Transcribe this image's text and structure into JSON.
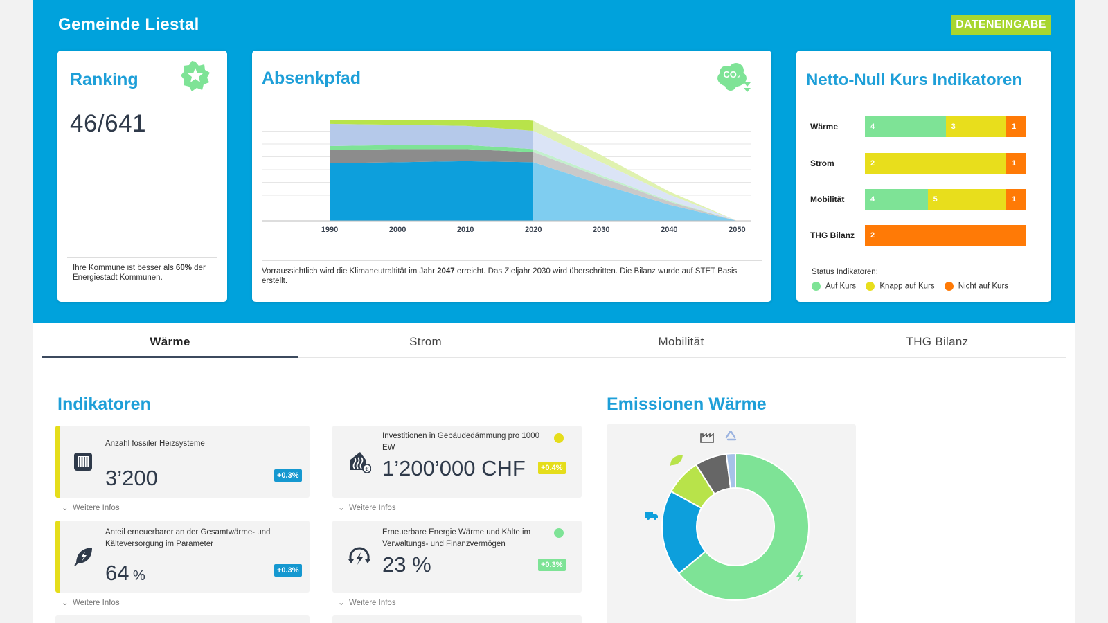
{
  "header": {
    "municipality": "Gemeinde Liestal",
    "data_entry_button": "DATENEINGABE"
  },
  "ranking": {
    "title": "Ranking",
    "value": "46/641",
    "footer_pre": "Ihre Kommune ist besser als ",
    "footer_bold": "60%",
    "footer_post": " der Energiestadt Kommunen."
  },
  "absenkpfad": {
    "title": "Absenkpfad",
    "footer_pre": "Vorraussichtlich wird die Klimaneutraltität im Jahr ",
    "footer_bold": "2047",
    "footer_post": " erreicht. Das Zieljahr 2030 wird überschritten. Die Bilanz wurde auf STET Basis erstellt.",
    "x_ticks": [
      "1990",
      "2000",
      "2010",
      "2020",
      "2030",
      "2040",
      "2050"
    ]
  },
  "netto_null": {
    "title": "Netto-Null Kurs Indikatoren",
    "rows": [
      {
        "label": "Wärme",
        "green": "4",
        "yellow": "3",
        "orange": "1"
      },
      {
        "label": "Strom",
        "yellow": "2",
        "orange": "1"
      },
      {
        "label": "Mobilität",
        "green": "4",
        "yellow": "5",
        "orange": "1"
      },
      {
        "label": "THG Bilanz",
        "orange": "2"
      }
    ],
    "status_label": "Status Indikatoren:",
    "legend": [
      "Auf Kurs",
      "Knapp auf Kurs",
      "Nicht auf Kurs"
    ],
    "colors": {
      "green": "#7ee396",
      "yellow": "#e8de1c",
      "orange": "#ff7a06"
    }
  },
  "tabs": [
    "Wärme",
    "Strom",
    "Mobilität",
    "THG Bilanz"
  ],
  "indikatoren": {
    "title": "Indikatoren",
    "more": "Weitere Infos",
    "items": [
      {
        "label": "Anzahl fossiler Heizsysteme",
        "value": "3’200",
        "unit": "",
        "badge": "+0.3%"
      },
      {
        "label": "Investitionen in Gebäudedämmung pro 1000 EW",
        "value": "1’200’000 CHF",
        "unit": "",
        "badge": "+0.4%"
      },
      {
        "label": "Anteil erneuerbarer an der Gesamtwärme- und Kälteversorgung im Parameter",
        "value": "64",
        "unit": " %",
        "badge": "+0.3%"
      },
      {
        "label": "Erneuerbare Energie Wärme und Kälte im Verwaltungs- und Finanzvermögen",
        "value": "23 %",
        "unit": "",
        "badge": "+0.3%"
      }
    ]
  },
  "emissionen": {
    "title": "Emissionen Wärme"
  },
  "chart_data": [
    {
      "type": "area",
      "title": "Absenkpfad",
      "x": [
        1990,
        2000,
        2010,
        2020,
        2030,
        2040,
        2050
      ],
      "ylim": [
        0,
        100
      ],
      "series": [
        {
          "name": "blue",
          "values": [
            57,
            58,
            59,
            58,
            36,
            16,
            0
          ]
        },
        {
          "name": "gray",
          "values": [
            13,
            13,
            12,
            10,
            7,
            3,
            0
          ]
        },
        {
          "name": "green",
          "values": [
            4,
            4,
            4,
            3,
            2,
            1,
            0
          ]
        },
        {
          "name": "lightblue",
          "values": [
            22,
            20,
            19,
            18,
            13,
            6,
            0
          ]
        },
        {
          "name": "lime",
          "values": [
            11,
            11,
            10,
            10,
            7,
            3,
            0
          ]
        }
      ],
      "projection_from": 2020
    },
    {
      "type": "pie",
      "title": "Emissionen Wärme",
      "labels": [
        "Strom",
        "Transport",
        "Landwirtschaft",
        "Industrie",
        "Recycling"
      ],
      "values": [
        64,
        19,
        8,
        7,
        2
      ]
    }
  ]
}
